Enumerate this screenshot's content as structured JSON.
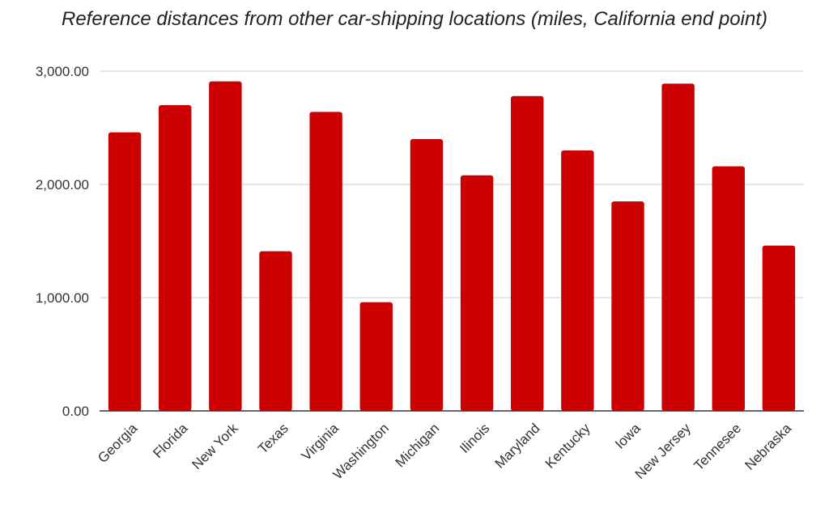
{
  "chart_data": {
    "type": "bar",
    "title": "Reference distances from other car-shipping locations (miles, California end point)",
    "xlabel": "",
    "ylabel": "",
    "categories": [
      "Georgia",
      "Florida",
      "New York",
      "Texas",
      "Virginia",
      "Washington",
      "Michigan",
      "Ilinois",
      "Maryland",
      "Kentucky",
      "Iowa",
      "New Jersey",
      "Tennesee",
      "Nebraska"
    ],
    "values": [
      2460,
      2700,
      2910,
      1410,
      2640,
      960,
      2400,
      2080,
      2780,
      2300,
      1850,
      2890,
      2160,
      1460
    ],
    "ylim": [
      0,
      3000
    ],
    "yticks": [
      "0.00",
      "1,000.00",
      "2,000.00",
      "3,000.00"
    ],
    "ytick_values": [
      0,
      1000,
      2000,
      3000
    ],
    "grid": true,
    "legend": "none",
    "colors": {
      "bar": "#cc0000",
      "grid": "#cccccc",
      "axis": "#333333"
    }
  }
}
